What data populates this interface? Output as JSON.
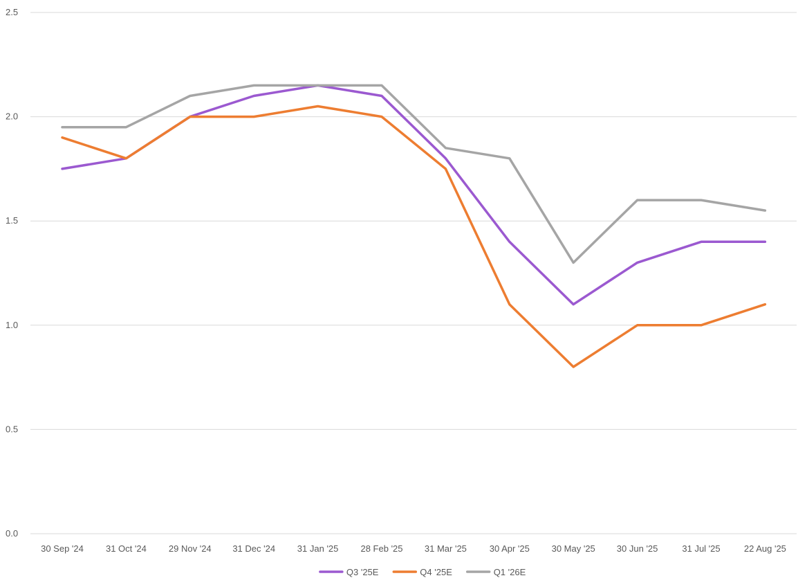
{
  "chart_data": {
    "type": "line",
    "title": "",
    "xlabel": "",
    "ylabel": "",
    "ylim": [
      0.0,
      2.5
    ],
    "yticks": [
      "0.0",
      "0.5",
      "1.0",
      "1.5",
      "2.0",
      "2.5"
    ],
    "grid": true,
    "legend_position": "bottom",
    "categories": [
      "30 Sep '24",
      "31 Oct '24",
      "29 Nov '24",
      "31 Dec '24",
      "31 Jan '25",
      "28 Feb '25",
      "31 Mar '25",
      "30 Apr '25",
      "30 May '25",
      "30 Jun '25",
      "31 Jul '25",
      "22 Aug '25"
    ],
    "series": [
      {
        "name": "Q3 '25E",
        "color": "#9b59d0",
        "values": [
          1.75,
          1.8,
          2.0,
          2.1,
          2.15,
          2.1,
          1.8,
          1.4,
          1.1,
          1.3,
          1.4,
          1.4
        ]
      },
      {
        "name": "Q4 '25E",
        "color": "#ed7d31",
        "values": [
          1.9,
          1.8,
          2.0,
          2.0,
          2.05,
          2.0,
          1.75,
          1.1,
          0.8,
          1.0,
          1.0,
          1.1
        ]
      },
      {
        "name": "Q1 '26E",
        "color": "#a5a5a5",
        "values": [
          1.95,
          1.95,
          2.1,
          2.15,
          2.15,
          2.15,
          1.85,
          1.8,
          1.3,
          1.6,
          1.6,
          1.55
        ]
      }
    ]
  }
}
